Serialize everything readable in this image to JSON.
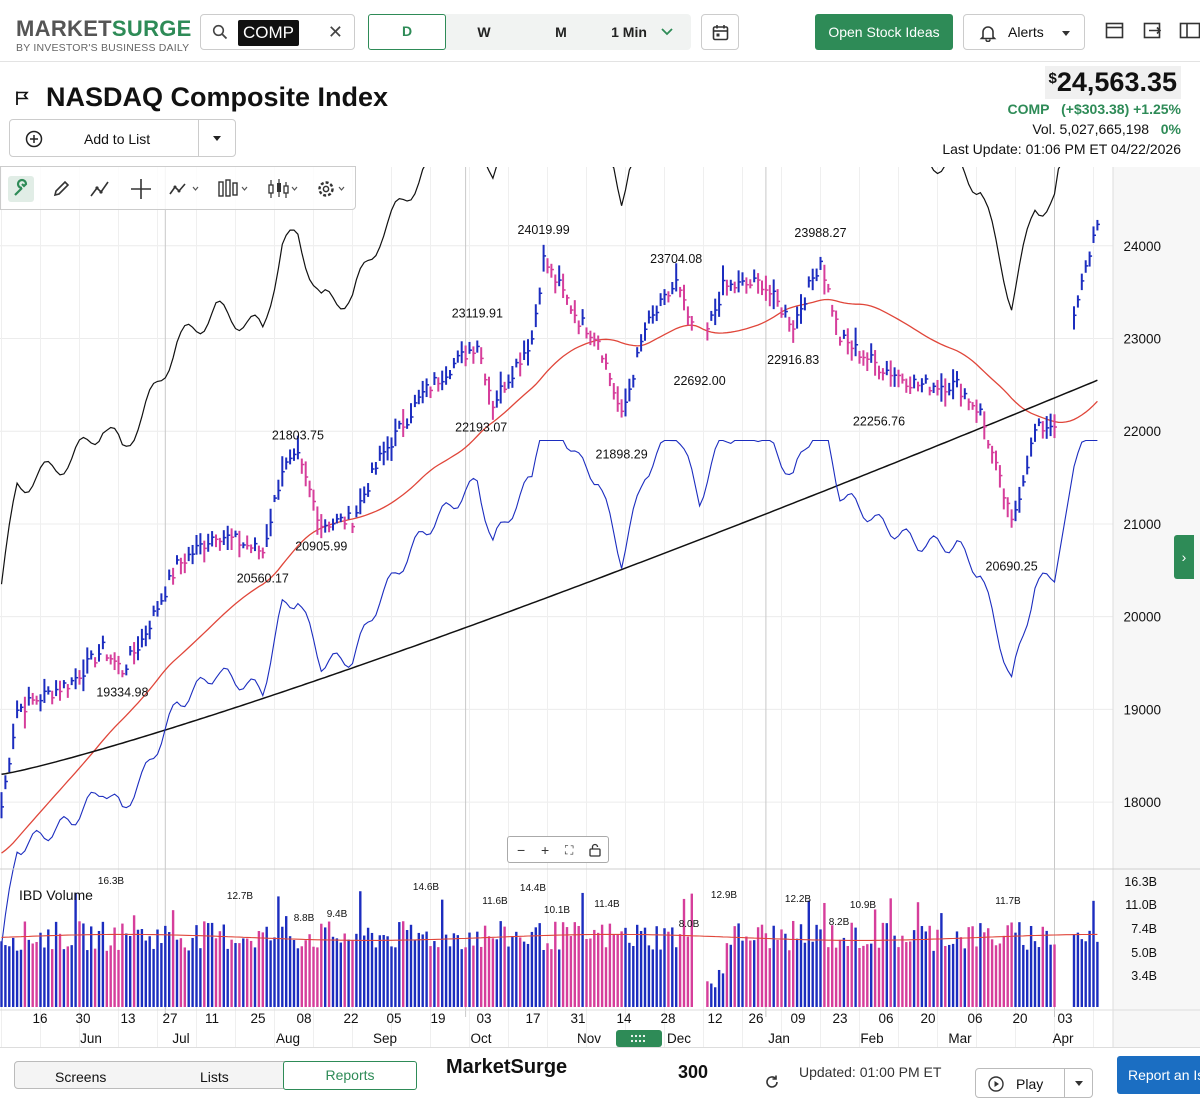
{
  "header": {
    "logo_main_a": "MARKET",
    "logo_main_b": "SURGE",
    "logo_sub": "BY INVESTOR'S BUSINESS DAILY",
    "search_value": "COMP",
    "periods": [
      "D",
      "W",
      "M",
      "1 Min"
    ],
    "open_stock_ideas": "Open Stock Ideas",
    "alerts": "Alerts"
  },
  "security": {
    "name": "NASDAQ Composite Index",
    "add_to_list": "Add to List",
    "currency": "$",
    "price": "24,563.35",
    "symbol": "COMP",
    "change": "(+$303.38) +1.25%",
    "vol_label": "Vol. 5,027,665,198",
    "vol_pct": "0%",
    "last_update": "Last Update: 01:06 PM ET 04/22/2026"
  },
  "chart_data": {
    "type": "ohlc",
    "y_ticks": [
      24000,
      23000,
      22000,
      21000,
      20000,
      19000,
      18000
    ],
    "ylim": [
      17300,
      24850
    ],
    "price_annotations": [
      {
        "label": "19334.98",
        "bar": 31,
        "value": 19334.98
      },
      {
        "label": "20560.17",
        "bar": 67,
        "value": 20560.17
      },
      {
        "label": "21803.75",
        "bar": 76,
        "value": 21803.75
      },
      {
        "label": "20905.99",
        "bar": 82,
        "value": 20905.99
      },
      {
        "label": "23119.91",
        "bar": 122,
        "value": 23119.91
      },
      {
        "label": "22193.07",
        "bar": 123,
        "value": 22193.07
      },
      {
        "label": "24019.99",
        "bar": 139,
        "value": 24019.99
      },
      {
        "label": "21898.29",
        "bar": 159,
        "value": 21898.29
      },
      {
        "label": "23704.08",
        "bar": 173,
        "value": 23704.08
      },
      {
        "label": "22692.00",
        "bar": 179,
        "value": 22692.0
      },
      {
        "label": "22916.83",
        "bar": 203,
        "value": 22916.83
      },
      {
        "label": "23988.27",
        "bar": 210,
        "value": 23988.27
      },
      {
        "label": "22256.76",
        "bar": 225,
        "value": 22256.76
      },
      {
        "label": "20690.25",
        "bar": 259,
        "value": 20690.25
      }
    ],
    "volume_label": "IBD Volume",
    "volume_ticks": [
      "16.3B",
      "11.0B",
      "7.4B",
      "5.0B",
      "3.4B"
    ],
    "volume_annotations": [
      "16.3B",
      "12.7B",
      "8.8B",
      "9.4B",
      "14.6B",
      "11.6B",
      "14.4B",
      "10.1B",
      "11.4B",
      "8.0B",
      "12.9B",
      "12.2B",
      "8.2B",
      "10.9B",
      "11.7B"
    ],
    "x_day_labels": [
      "16",
      "30",
      "13",
      "27",
      "11",
      "25",
      "08",
      "22",
      "05",
      "19",
      "03",
      "17",
      "31",
      "14",
      "28",
      "12",
      "26",
      "09",
      "23",
      "06",
      "20",
      "06",
      "20",
      "03"
    ],
    "x_month_labels": [
      "Jun",
      "Jul",
      "Aug",
      "Sep",
      "Oct",
      "Nov",
      "Dec",
      "Jan",
      "Feb",
      "Mar",
      "Apr"
    ],
    "series": [
      {
        "name": "price bars",
        "color": "#1c2dbf"
      },
      {
        "name": "50-day moving average",
        "color": "#e0463a"
      },
      {
        "name": "200-day moving average",
        "color": "#111111"
      },
      {
        "name": "relative strength line",
        "color": "#1c2dbf"
      }
    ]
  },
  "bottom": {
    "tabs": [
      "Screens",
      "Lists",
      "Reports"
    ],
    "title": "MarketSurge",
    "count": "300",
    "updated": "Updated: 01:00 PM ET",
    "play": "Play",
    "report": "Report an Issue"
  }
}
